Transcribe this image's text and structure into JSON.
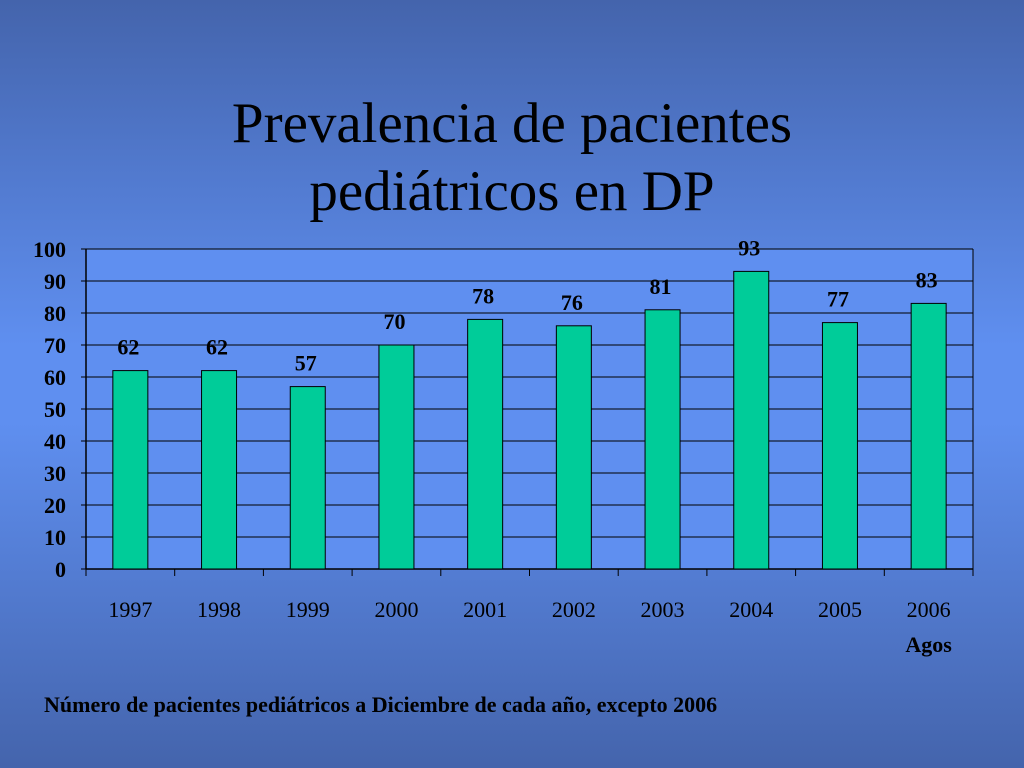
{
  "slide": {
    "title_line1": "Prevalencia de pacientes",
    "title_line2": "pediátricos en DP",
    "footnote": "Número de pacientes pediátricos a Diciembre de cada año, excepto 2006"
  },
  "colors": {
    "bar_fill": "#00cc99",
    "bar_stroke": "#000000",
    "plot_background": "#5f8ff0",
    "gridline": "#000000"
  },
  "chart_data": {
    "type": "bar",
    "categories": [
      "1997",
      "1998",
      "1999",
      "2000",
      "2001",
      "2002",
      "2003",
      "2004",
      "2005",
      "2006"
    ],
    "category_sublabels": [
      "",
      "",
      "",
      "",
      "",
      "",
      "",
      "",
      "",
      "Agos"
    ],
    "values": [
      62,
      62,
      57,
      70,
      78,
      76,
      81,
      93,
      77,
      83
    ],
    "data_labels": [
      "62",
      "62",
      "57",
      "70",
      "78",
      "76",
      "81",
      "93",
      "77",
      "83"
    ],
    "ylim": [
      0,
      100
    ],
    "yticks": [
      0,
      10,
      20,
      30,
      40,
      50,
      60,
      70,
      80,
      90,
      100
    ],
    "grid": true,
    "title": "",
    "xlabel": "",
    "ylabel": ""
  }
}
